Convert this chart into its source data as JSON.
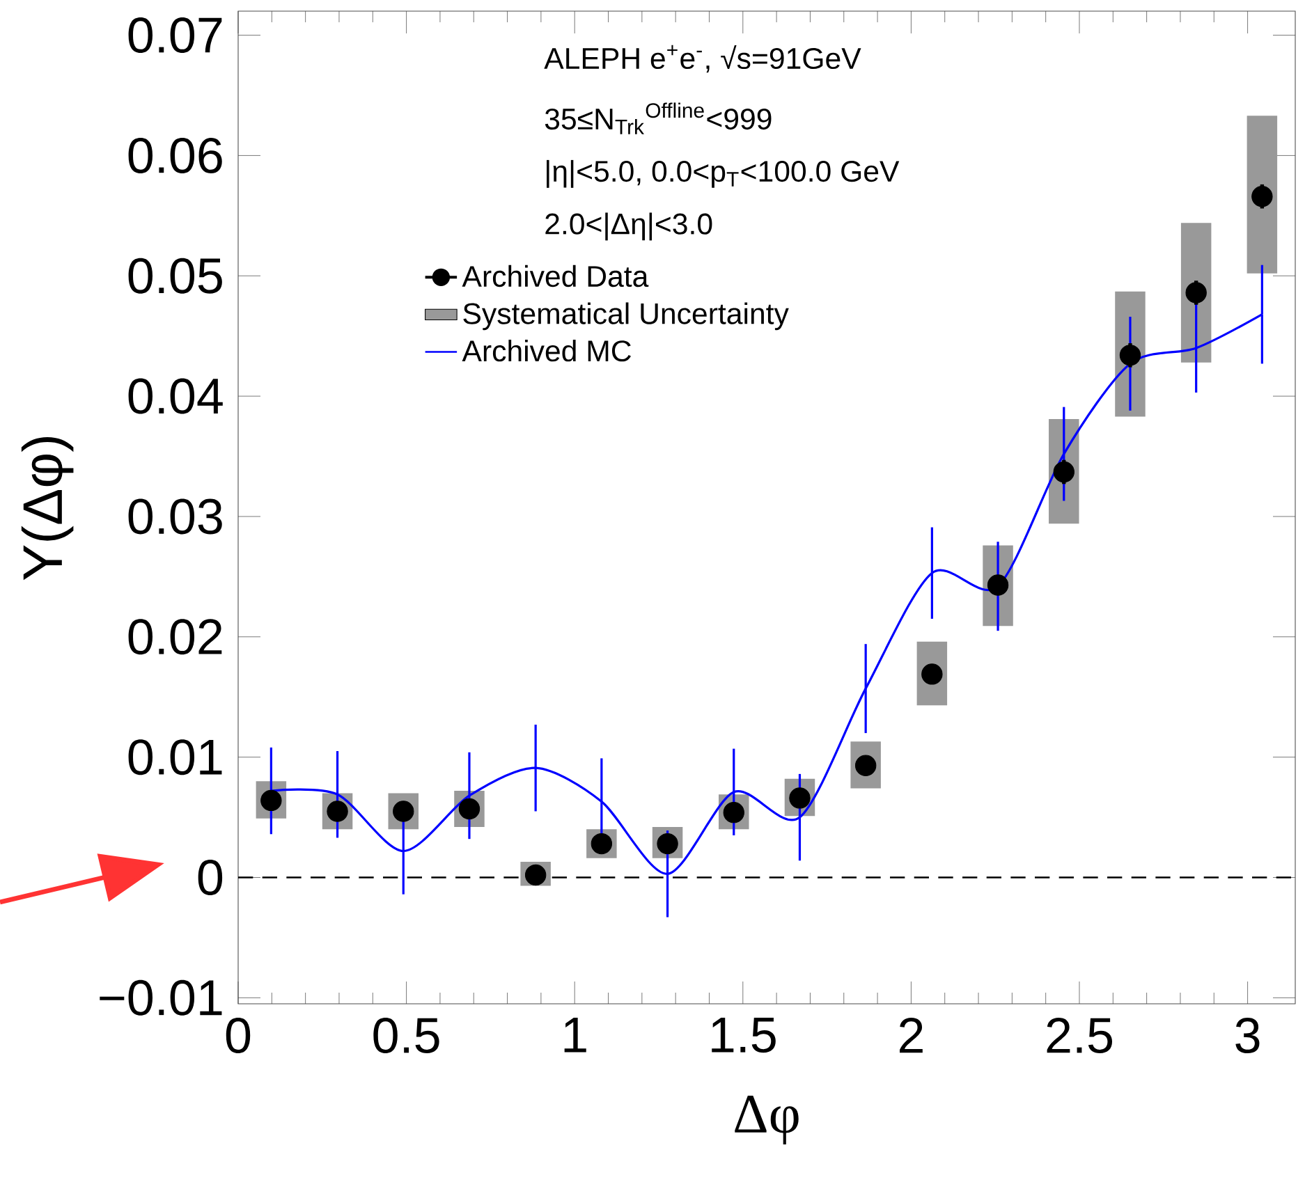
{
  "chart_data": {
    "type": "scatter",
    "xlabel": "Δφ",
    "ylabel": "Y(Δφ)",
    "annotations": [
      "ALEPH e$^{+}$e$^{-}$, √s=91GeV",
      "35≤N$_{Trk}$$^{Offline}$<999",
      "|η|<5.0, 0.0<p$_{T}$<100.0 GeV",
      "2.0<|Δη|<3.0"
    ],
    "x": [
      0.098,
      0.295,
      0.491,
      0.687,
      0.884,
      1.08,
      1.276,
      1.473,
      1.669,
      1.865,
      2.062,
      2.258,
      2.454,
      2.651,
      2.847,
      3.043
    ],
    "series": [
      {
        "name": "Archived Data",
        "marker": "circle",
        "color": "#000000",
        "values": [
          0.0064,
          0.0055,
          0.0055,
          0.0057,
          0.0002,
          0.0028,
          0.0028,
          0.0054,
          0.0066,
          0.0093,
          0.0169,
          0.0243,
          0.0337,
          0.0434,
          0.0486,
          0.0566
        ],
        "errors": [
          0.0005,
          0.0005,
          0.0005,
          0.0005,
          0.0005,
          0.0005,
          0.0005,
          0.0005,
          0.0005,
          0.0008,
          0.0008,
          0.0008,
          0.001,
          0.001,
          0.001,
          0.001
        ]
      },
      {
        "name": "Systematical Uncertainty",
        "type": "bar",
        "color": "#999999",
        "base": [
          0.0049,
          0.004,
          0.004,
          0.0042,
          -0.0007,
          0.0016,
          0.0016,
          0.004,
          0.0051,
          0.0074,
          0.0143,
          0.0209,
          0.0294,
          0.0383,
          0.0428,
          0.0502
        ],
        "values": [
          0.0031,
          0.003,
          0.003,
          0.003,
          0.002,
          0.0024,
          0.0026,
          0.0029,
          0.0031,
          0.0039,
          0.0053,
          0.0067,
          0.0087,
          0.0104,
          0.0116,
          0.0131
        ]
      },
      {
        "name": "Archived MC",
        "type": "line",
        "color": "#0000ff",
        "values": [
          0.0072,
          0.0069,
          0.0022,
          0.0068,
          0.0091,
          0.0063,
          0.0003,
          0.0071,
          0.005,
          0.0157,
          0.0253,
          0.0242,
          0.0352,
          0.0427,
          0.044,
          0.0468
        ],
        "errors": [
          0.0036,
          0.0036,
          0.0036,
          0.0036,
          0.0036,
          0.0036,
          0.0036,
          0.0036,
          0.0036,
          0.0037,
          0.0038,
          0.0037,
          0.0039,
          0.0039,
          0.0037,
          0.0041
        ]
      }
    ],
    "xlim": [
      0,
      3.1416
    ],
    "ylim": [
      -0.0105,
      0.072
    ],
    "xticks": [
      0,
      0.5,
      1,
      1.5,
      2,
      2.5,
      3
    ],
    "yticks": [
      {
        "value": -0.01,
        "label": "−0.01"
      },
      0,
      0.01,
      0.02,
      0.03,
      0.04,
      0.05,
      0.06,
      0.07
    ],
    "ref_lines": [
      {
        "axis": "y",
        "value": 0,
        "line_style": "dashed",
        "color": "#000000"
      }
    ],
    "legend": "top"
  }
}
